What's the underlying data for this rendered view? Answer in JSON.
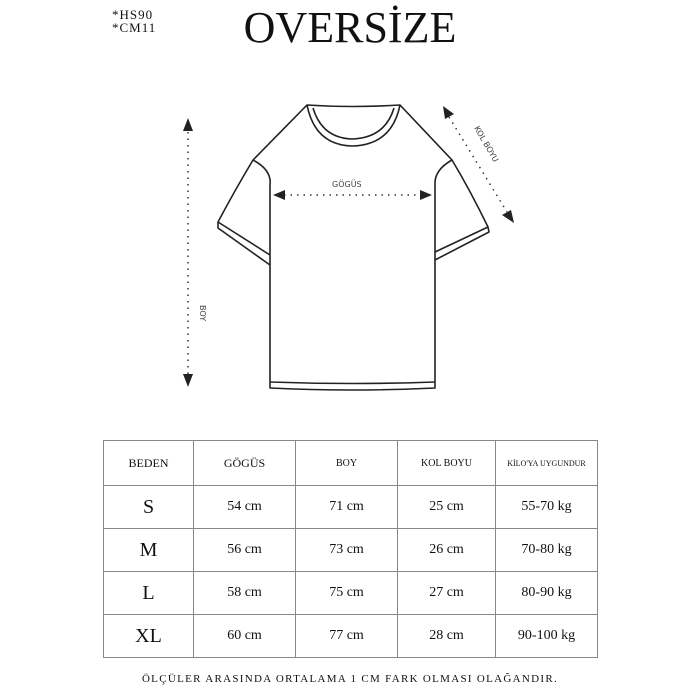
{
  "header": {
    "codes": [
      "*HS90",
      "*CM11"
    ],
    "title": "OVERSİZE"
  },
  "diagram": {
    "chest_label": "GÖGÜS",
    "length_label": "BOY",
    "sleeve_label": "KOL BOYU"
  },
  "table": {
    "headers": [
      "BEDEN",
      "GÖGÜS",
      "BOY",
      "KOL BOYU",
      "KİLO'YA UYGUNDUR"
    ],
    "rows": [
      [
        "S",
        "54 cm",
        "71 cm",
        "25  cm",
        "55-70 kg"
      ],
      [
        "M",
        "56 cm",
        "73 cm",
        "26 cm",
        "70-80 kg"
      ],
      [
        "L",
        "58 cm",
        "75 cm",
        "27 cm",
        "80-90 kg"
      ],
      [
        "XL",
        "60 cm",
        "77 cm",
        "28 cm",
        "90-100 kg"
      ]
    ]
  },
  "footer_note": "ÖLÇÜLER ARASINDA ORTALAMA 1 CM FARK OLMASI OLAĞANDIR."
}
